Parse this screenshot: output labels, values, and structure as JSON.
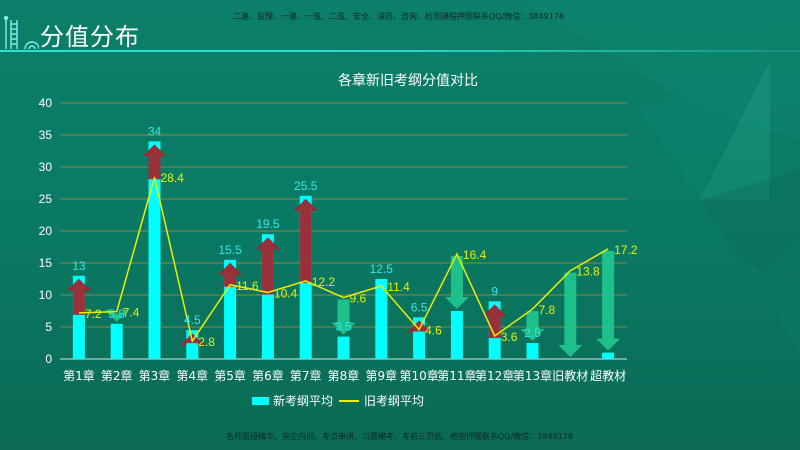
{
  "header": {
    "title": "分值分布",
    "top_note": "二建、监理、一建、一造、二造、安全、消防、咨询、检测课程押题联系QQ/微信：3849178",
    "logo_icon": "building-ladder-icon"
  },
  "footer": {
    "note": "名师面授精华、央企内训、考点串讲、习题模考、考前三页纸、绝密押题联系QQ/微信：3849178"
  },
  "legend": {
    "bar_label": "新考纲平均",
    "line_label": "旧考纲平均"
  },
  "colors": {
    "bar": "#00ffff",
    "line": "#e8f000",
    "bar_label": "#35e6e6",
    "line_label": "#e8f000",
    "arrow_up": "#a0262e",
    "arrow_down": "#20c98f",
    "grid": "#a08a4a",
    "background": "#0b7f69"
  },
  "chart_data": {
    "type": "bar",
    "title": "各章新旧考纲分值对比",
    "xlabel": "",
    "ylabel": "",
    "ylim": [
      0,
      40
    ],
    "yticks": [
      0,
      5,
      10,
      15,
      20,
      25,
      30,
      35,
      40
    ],
    "grid": true,
    "legend_position": "bottom",
    "categories": [
      "第1章",
      "第2章",
      "第3章",
      "第4章",
      "第5章",
      "第6章",
      "第7章",
      "第8章",
      "第9章",
      "第10章",
      "第11章",
      "第12章",
      "第13章",
      "旧教材",
      "超教材"
    ],
    "series": [
      {
        "name": "新考纲平均",
        "type": "bar",
        "values": [
          13,
          5.5,
          34,
          4.5,
          15.5,
          19.5,
          25.5,
          3.5,
          12.5,
          6.5,
          7.5,
          9,
          2.5,
          0,
          1
        ]
      },
      {
        "name": "旧考纲平均",
        "type": "line",
        "values": [
          7.2,
          7.4,
          28.4,
          2.8,
          11.6,
          10.4,
          12.2,
          9.6,
          11.4,
          4.6,
          16.4,
          3.6,
          7.8,
          13.8,
          17.2
        ]
      }
    ],
    "bar_labels": [
      "13",
      "5.5",
      "34",
      "4.5",
      "15.5",
      "19.5",
      "25.5",
      "3.5",
      "12.5",
      "6.5",
      "",
      "9",
      "2.5",
      "",
      ""
    ],
    "line_labels": [
      "7.2",
      "7.4",
      "28.4",
      "2.8",
      "11.6",
      "10.4",
      "12.2",
      "9.6",
      "11.4",
      "4.6",
      "16.4",
      "3.6",
      "7.8",
      "13.8",
      "17.2"
    ],
    "annotations": "Red up-arrows mark chapters where the new syllabus value rose vs old (第1,3,5,6,7,12章); green down-arrows mark decreases (第8,11章, 旧教材, 超教材)"
  }
}
